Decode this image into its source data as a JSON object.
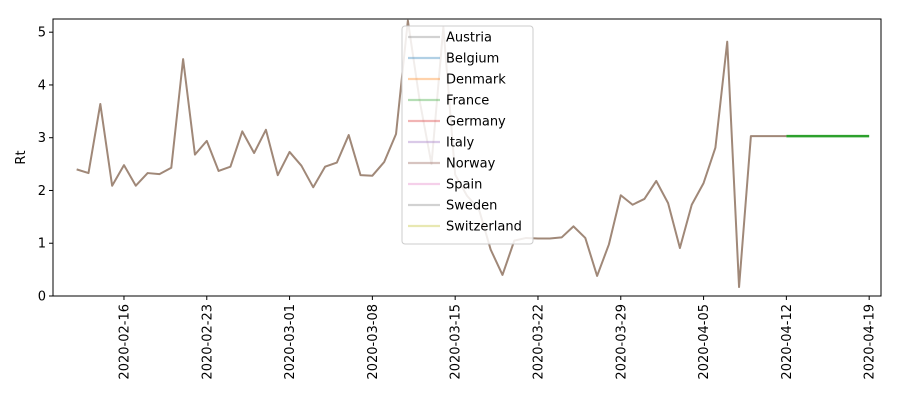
{
  "chart_data": {
    "type": "line",
    "title": "",
    "xlabel": "",
    "ylabel": "Rt",
    "ylim": [
      0,
      5.25
    ],
    "xlim": [
      "2020-02-10",
      "2020-04-20"
    ],
    "y_ticks": [
      0,
      1,
      2,
      3,
      4,
      5
    ],
    "x_ticks": [
      "2020-02-16",
      "2020-02-23",
      "2020-03-01",
      "2020-03-08",
      "2020-03-15",
      "2020-03-22",
      "2020-03-29",
      "2020-04-05",
      "2020-04-12",
      "2020-04-19"
    ],
    "grid": false,
    "legend_position": "upper center",
    "legend": [
      "Austria",
      "Belgium",
      "Denmark",
      "France",
      "Germany",
      "Italy",
      "Norway",
      "Spain",
      "Sweden",
      "Switzerland"
    ],
    "colors": {
      "Austria": "#7f7f7f",
      "Belgium": "#1f77b4",
      "Denmark": "#ff7f0e",
      "France": "#2ca02c",
      "Germany": "#d62728",
      "Italy": "#9467bd",
      "Norway": "#8c564b",
      "Spain": "#e377c2",
      "Sweden": "#7f7f7f",
      "Switzerland": "#bcbd22",
      "history_line": "#a08878",
      "forecast_line": "#2ca02c"
    },
    "series": [
      {
        "name": "",
        "x": [
          "2020-02-12",
          "2020-02-13",
          "2020-02-14",
          "2020-02-15",
          "2020-02-16",
          "2020-02-17",
          "2020-02-18",
          "2020-02-19",
          "2020-02-20",
          "2020-02-21",
          "2020-02-22",
          "2020-02-23",
          "2020-02-24",
          "2020-02-25",
          "2020-02-26",
          "2020-02-27",
          "2020-02-28",
          "2020-02-29",
          "2020-03-01",
          "2020-03-02",
          "2020-03-03",
          "2020-03-04",
          "2020-03-05",
          "2020-03-06",
          "2020-03-07",
          "2020-03-08",
          "2020-03-09",
          "2020-03-10",
          "2020-03-11",
          "2020-03-12",
          "2020-03-13",
          "2020-03-14",
          "2020-03-15",
          "2020-03-16",
          "2020-03-17",
          "2020-03-18",
          "2020-03-19",
          "2020-03-20",
          "2020-03-21",
          "2020-03-22",
          "2020-03-23",
          "2020-03-24",
          "2020-03-25",
          "2020-03-26",
          "2020-03-27",
          "2020-03-28",
          "2020-03-29",
          "2020-03-30",
          "2020-03-31",
          "2020-04-01",
          "2020-04-02",
          "2020-04-03",
          "2020-04-04",
          "2020-04-05",
          "2020-04-06",
          "2020-04-07",
          "2020-04-08",
          "2020-04-09",
          "2020-04-10",
          "2020-04-11",
          "2020-04-12"
        ],
        "values": [
          2.4,
          2.33,
          3.64,
          2.09,
          2.48,
          2.09,
          2.33,
          2.31,
          2.43,
          4.49,
          2.68,
          2.94,
          2.37,
          2.45,
          3.12,
          2.71,
          3.15,
          2.29,
          2.73,
          2.47,
          2.06,
          2.45,
          2.53,
          3.05,
          2.29,
          2.28,
          2.54,
          3.07,
          5.22,
          3.7,
          2.5,
          5.1,
          2.3,
          1.9,
          1.65,
          0.88,
          0.4,
          1.05,
          1.1,
          1.09,
          1.09,
          1.11,
          1.32,
          1.1,
          0.38,
          0.98,
          1.91,
          1.73,
          1.84,
          2.18,
          1.76,
          0.91,
          1.73,
          2.14,
          2.81,
          4.82,
          0.17,
          3.03,
          3.03,
          3.03,
          3.03
        ]
      },
      {
        "name": "",
        "x": [
          "2020-04-12",
          "2020-04-19"
        ],
        "values": [
          3.03,
          3.03
        ]
      }
    ]
  }
}
